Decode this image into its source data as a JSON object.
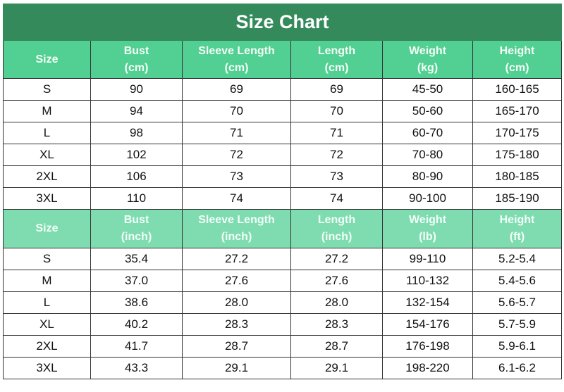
{
  "title": "Size Chart",
  "colors": {
    "title_bg": "#348a5b",
    "header_cm_bg": "#52cf92",
    "header_inch_bg": "#7edcb0"
  },
  "cm_section": {
    "headers": [
      [
        "Size",
        ""
      ],
      [
        "Bust",
        "(cm)"
      ],
      [
        "Sleeve Length",
        "(cm)"
      ],
      [
        "Length",
        "(cm)"
      ],
      [
        "Weight",
        "(kg)"
      ],
      [
        "Height",
        "(cm)"
      ]
    ],
    "rows": [
      [
        "S",
        "90",
        "69",
        "69",
        "45-50",
        "160-165"
      ],
      [
        "M",
        "94",
        "70",
        "70",
        "50-60",
        "165-170"
      ],
      [
        "L",
        "98",
        "71",
        "71",
        "60-70",
        "170-175"
      ],
      [
        "XL",
        "102",
        "72",
        "72",
        "70-80",
        "175-180"
      ],
      [
        "2XL",
        "106",
        "73",
        "73",
        "80-90",
        "180-185"
      ],
      [
        "3XL",
        "110",
        "74",
        "74",
        "90-100",
        "185-190"
      ]
    ]
  },
  "inch_section": {
    "headers": [
      [
        "Size",
        ""
      ],
      [
        "Bust",
        "(inch)"
      ],
      [
        "Sleeve Length",
        "(inch)"
      ],
      [
        "Length",
        "(inch)"
      ],
      [
        "Weight",
        "(lb)"
      ],
      [
        "Height",
        "(ft)"
      ]
    ],
    "rows": [
      [
        "S",
        "35.4",
        "27.2",
        "27.2",
        "99-110",
        "5.2-5.4"
      ],
      [
        "M",
        "37.0",
        "27.6",
        "27.6",
        "110-132",
        "5.4-5.6"
      ],
      [
        "L",
        "38.6",
        "28.0",
        "28.0",
        "132-154",
        "5.6-5.7"
      ],
      [
        "XL",
        "40.2",
        "28.3",
        "28.3",
        "154-176",
        "5.7-5.9"
      ],
      [
        "2XL",
        "41.7",
        "28.7",
        "28.7",
        "176-198",
        "5.9-6.1"
      ],
      [
        "3XL",
        "43.3",
        "29.1",
        "29.1",
        "198-220",
        "6.1-6.2"
      ]
    ]
  }
}
